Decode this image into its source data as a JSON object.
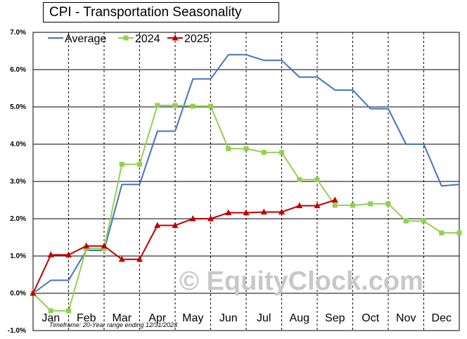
{
  "chart_data": {
    "type": "line",
    "title": "CPI - Transportation Seasonality",
    "footnote": "Timeframe: 20-Year range ending 12/31/2023",
    "watermark": "© EquityClock.com",
    "x_month_labels": [
      "Jan",
      "Feb",
      "Mar",
      "Apr",
      "May",
      "Jun",
      "Jul",
      "Aug",
      "Sep",
      "Oct",
      "Nov",
      "Dec"
    ],
    "y_tick_labels": [
      "-1.0%",
      "0.0%",
      "1.0%",
      "2.0%",
      "3.0%",
      "4.0%",
      "5.0%",
      "6.0%",
      "7.0%"
    ],
    "ylim": [
      -1.0,
      7.0
    ],
    "xlim": [
      0,
      12
    ],
    "grid": {
      "horizontal": "solid",
      "vertical": "dashed month boundaries"
    },
    "legend_position": "top-left",
    "series": [
      {
        "name": "Average",
        "color": "#4472c4",
        "marker": "none",
        "x": [
          0,
          0.5,
          1.0,
          1.5,
          2.0,
          2.5,
          3.0,
          3.5,
          4.0,
          4.5,
          5.0,
          5.5,
          6.0,
          6.5,
          7.0,
          7.5,
          8.0,
          8.5,
          9.0,
          9.5,
          10.0,
          10.5,
          11.0,
          11.5,
          12.0
        ],
        "values": [
          0.0,
          0.35,
          0.35,
          1.15,
          1.15,
          2.92,
          2.92,
          4.35,
          4.35,
          5.75,
          5.75,
          6.4,
          6.4,
          6.25,
          6.25,
          5.8,
          5.8,
          5.45,
          5.45,
          4.95,
          4.95,
          4.0,
          4.0,
          2.88,
          2.92
        ]
      },
      {
        "name": "2024",
        "color": "#92d050",
        "marker": "square",
        "x": [
          0,
          0.5,
          1.0,
          1.5,
          2.0,
          2.5,
          3.0,
          3.5,
          4.0,
          4.5,
          5.0,
          5.5,
          6.0,
          6.5,
          7.0,
          7.5,
          8.0,
          8.5,
          9.0,
          9.5,
          10.0,
          10.5,
          11.0,
          11.5,
          12.0
        ],
        "values": [
          0.0,
          -0.47,
          -0.47,
          1.2,
          1.2,
          3.46,
          3.46,
          5.04,
          5.04,
          5.02,
          5.02,
          3.88,
          3.88,
          3.78,
          3.78,
          3.05,
          3.05,
          2.36,
          2.36,
          2.4,
          2.4,
          1.94,
          1.94,
          1.62,
          1.62
        ]
      },
      {
        "name": "2025",
        "color": "#c00000",
        "marker": "triangle",
        "x": [
          0,
          0.5,
          1.0,
          1.5,
          2.0,
          2.5,
          3.0,
          3.5,
          4.0,
          4.5,
          5.0,
          5.5,
          6.0,
          6.5,
          7.0,
          7.5,
          8.0,
          8.5
        ],
        "values": [
          0.0,
          1.03,
          1.03,
          1.27,
          1.27,
          0.91,
          0.91,
          1.82,
          1.82,
          2.0,
          2.0,
          2.16,
          2.16,
          2.18,
          2.18,
          2.35,
          2.35,
          2.5
        ]
      }
    ]
  }
}
